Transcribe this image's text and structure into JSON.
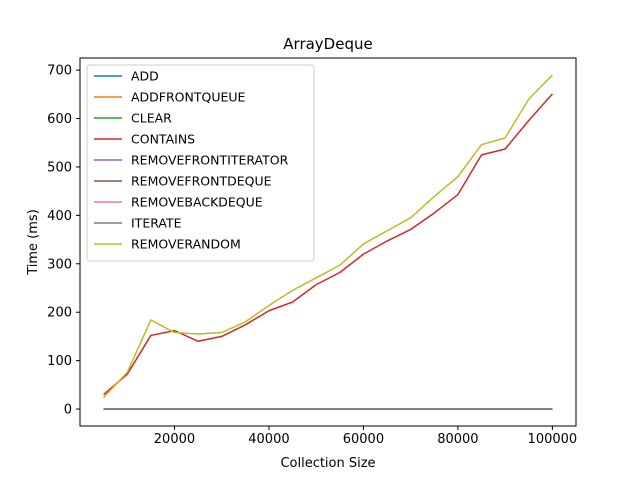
{
  "chart_data": {
    "type": "line",
    "title": "ArrayDeque",
    "xlabel": "Collection Size",
    "ylabel": "Time (ms)",
    "xlim": [
      0,
      105000
    ],
    "ylim": [
      -35,
      725
    ],
    "xticks": [
      20000,
      40000,
      60000,
      80000,
      100000
    ],
    "yticks": [
      0,
      100,
      200,
      300,
      400,
      500,
      600,
      700
    ],
    "grid": false,
    "legend_position": "top-left",
    "x": [
      5000,
      10000,
      15000,
      20000,
      25000,
      30000,
      35000,
      40000,
      45000,
      50000,
      55000,
      60000,
      65000,
      70000,
      75000,
      80000,
      85000,
      90000,
      95000,
      100000
    ],
    "series": [
      {
        "name": "ADD",
        "color": "#1f77b4",
        "values": [
          0,
          0,
          0,
          0,
          0,
          0,
          0,
          0,
          0,
          0,
          0,
          0,
          0,
          0,
          0,
          0,
          0,
          0,
          0,
          0
        ]
      },
      {
        "name": "ADDFRONTQUEUE",
        "color": "#ff7f0e",
        "values": [
          0,
          0,
          0,
          0,
          0,
          0,
          0,
          0,
          0,
          0,
          0,
          0,
          0,
          0,
          0,
          0,
          0,
          0,
          0,
          0
        ]
      },
      {
        "name": "CLEAR",
        "color": "#2ca02c",
        "values": [
          0,
          0,
          0,
          0,
          0,
          0,
          0,
          0,
          0,
          0,
          0,
          0,
          0,
          0,
          0,
          0,
          0,
          0,
          0,
          0
        ]
      },
      {
        "name": "CONTAINS",
        "color": "#d62728",
        "values": [
          30,
          72,
          152,
          162,
          140,
          150,
          174,
          203,
          221,
          257,
          282,
          320,
          347,
          371,
          405,
          443,
          525,
          537,
          596,
          651
        ]
      },
      {
        "name": "REMOVEFRONTITERATOR",
        "color": "#9467bd",
        "values": [
          0,
          0,
          0,
          0,
          0,
          0,
          0,
          0,
          0,
          0,
          0,
          0,
          0,
          0,
          0,
          0,
          0,
          0,
          0,
          0
        ]
      },
      {
        "name": "REMOVEFRONTDEQUE",
        "color": "#8c564b",
        "values": [
          0,
          0,
          0,
          0,
          0,
          0,
          0,
          0,
          0,
          0,
          0,
          0,
          0,
          0,
          0,
          0,
          0,
          0,
          0,
          0
        ]
      },
      {
        "name": "REMOVEBACKDEQUE",
        "color": "#e377c2",
        "values": [
          0,
          0,
          0,
          0,
          0,
          0,
          0,
          0,
          0,
          0,
          0,
          0,
          0,
          0,
          0,
          0,
          0,
          0,
          0,
          0
        ]
      },
      {
        "name": "ITERATE",
        "color": "#7f7f7f",
        "values": [
          0,
          0,
          0,
          0,
          0,
          0,
          0,
          0,
          0,
          0,
          0,
          0,
          0,
          0,
          0,
          0,
          0,
          0,
          0,
          0
        ]
      },
      {
        "name": "REMOVERANDOM",
        "color": "#bcbd22",
        "values": [
          24,
          76,
          184,
          158,
          155,
          158,
          180,
          214,
          245,
          271,
          297,
          341,
          368,
          395,
          439,
          480,
          546,
          560,
          640,
          690
        ]
      }
    ]
  }
}
